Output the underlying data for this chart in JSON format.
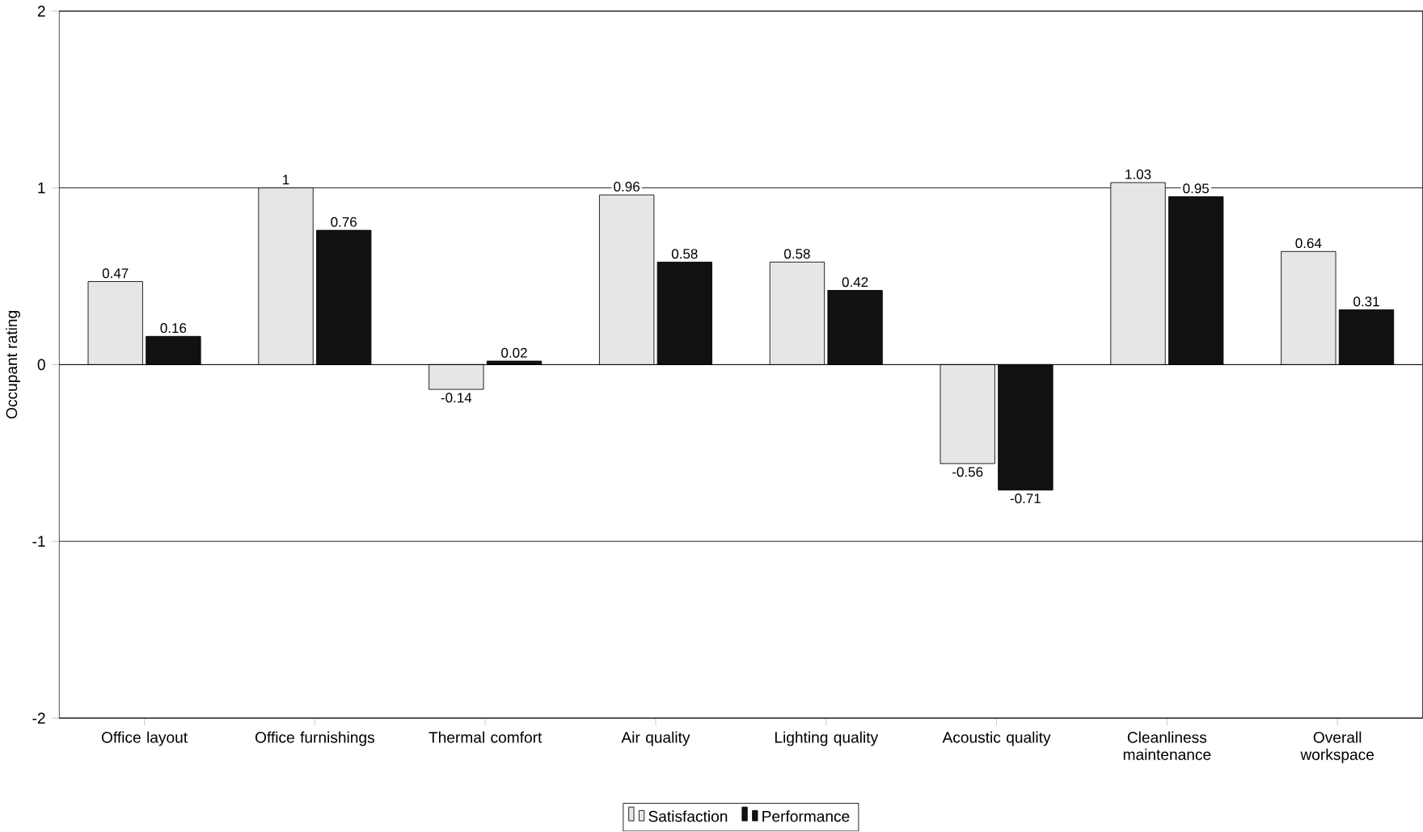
{
  "chart_data": {
    "type": "bar",
    "ylabel": "Occupant rating",
    "categories": [
      "Office layout",
      "Office furnishings",
      "Thermal comfort",
      "Air quality",
      "Lighting quality",
      "Acoustic quality",
      "Cleanliness maintenance",
      "Overall workspace"
    ],
    "series": [
      {
        "name": "Satisfaction",
        "color": "#e6e6e6",
        "values": [
          0.47,
          1,
          -0.14,
          0.96,
          0.58,
          -0.56,
          1.03,
          0.64
        ]
      },
      {
        "name": "Performance",
        "color": "#111111",
        "values": [
          0.16,
          0.76,
          0.02,
          0.58,
          0.42,
          -0.71,
          0.95,
          0.31
        ]
      }
    ],
    "ylim": [
      -2,
      2
    ],
    "yticks": [
      -2,
      -1,
      0,
      1,
      2
    ],
    "grid": "y",
    "data_labels": true,
    "legend": "bottom"
  }
}
